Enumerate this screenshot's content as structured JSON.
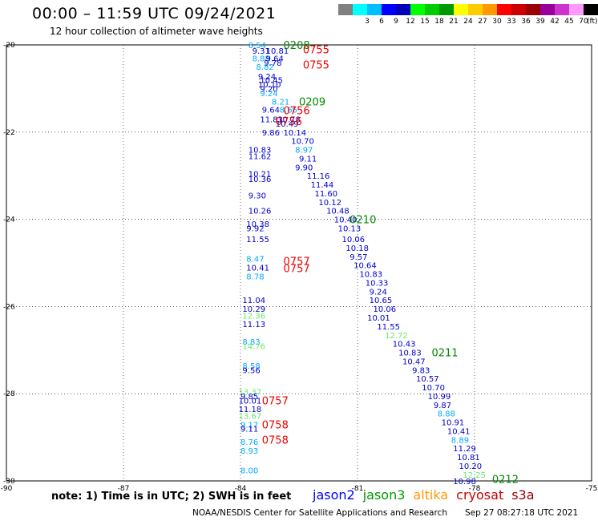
{
  "header": {
    "title": "00:00 – 11:59 UTC 09/24/2021",
    "subtitle": "12 hour collection of altimeter wave heights"
  },
  "colorbar": {
    "unit": "(ft)",
    "swatches": [
      {
        "color": "#808080",
        "label": ""
      },
      {
        "color": "#00ffff",
        "label": "3"
      },
      {
        "color": "#00bfff",
        "label": "6"
      },
      {
        "color": "#0000ff",
        "label": "9"
      },
      {
        "color": "#0000bb",
        "label": "12"
      },
      {
        "color": "#00ff00",
        "label": "15"
      },
      {
        "color": "#00cc00",
        "label": "18"
      },
      {
        "color": "#009900",
        "label": "21"
      },
      {
        "color": "#ffff00",
        "label": "24"
      },
      {
        "color": "#ffcc00",
        "label": "27"
      },
      {
        "color": "#ff9900",
        "label": "30"
      },
      {
        "color": "#ff0000",
        "label": "33"
      },
      {
        "color": "#cc0000",
        "label": "36"
      },
      {
        "color": "#990000",
        "label": "39"
      },
      {
        "color": "#990099",
        "label": "42"
      },
      {
        "color": "#cc33cc",
        "label": "45"
      },
      {
        "color": "#ff99ff",
        "label": "70"
      },
      {
        "color": "#000000",
        "label": ""
      }
    ]
  },
  "map": {
    "lon_range": [
      -90,
      -75
    ],
    "lat_range": [
      -30,
      -20
    ],
    "lon_ticks": [
      "-90",
      "-87",
      "-84",
      "-81",
      "-78",
      "-75"
    ],
    "lat_ticks": [
      "-20",
      "-22",
      "-24",
      "-26",
      "-28",
      "-30"
    ],
    "grid": "dotted",
    "points": [
      {
        "lon": -83.8,
        "lat": -20.0,
        "v": "8.54",
        "c": "#00aaff"
      },
      {
        "lon": -83.7,
        "lat": -20.13,
        "v": "9.31",
        "c": "#0000cc"
      },
      {
        "lon": -83.35,
        "lat": -20.13,
        "v": "10.81",
        "c": "#0000cc"
      },
      {
        "lon": -83.7,
        "lat": -20.3,
        "v": "8.88",
        "c": "#00aaff"
      },
      {
        "lon": -83.35,
        "lat": -20.3,
        "v": "9.64",
        "c": "#0000cc"
      },
      {
        "lon": -83.4,
        "lat": -20.4,
        "v": "9.78",
        "c": "#0000cc"
      },
      {
        "lon": -83.6,
        "lat": -20.5,
        "v": "8.82",
        "c": "#00aaff"
      },
      {
        "lon": -83.55,
        "lat": -20.72,
        "v": "9.24",
        "c": "#0000cc"
      },
      {
        "lon": -83.5,
        "lat": -20.8,
        "v": "10.45",
        "c": "#0000cc"
      },
      {
        "lon": -83.55,
        "lat": -20.9,
        "v": "10.10",
        "c": "#0000cc"
      },
      {
        "lon": -83.5,
        "lat": -21.0,
        "v": "9.20",
        "c": "#0000cc"
      },
      {
        "lon": -83.5,
        "lat": -21.1,
        "v": "9.24",
        "c": "#00aaff"
      },
      {
        "lon": -83.2,
        "lat": -21.3,
        "v": "8.21",
        "c": "#00aaff"
      },
      {
        "lon": -83.45,
        "lat": -21.48,
        "v": "9.64",
        "c": "#0000cc"
      },
      {
        "lon": -83.0,
        "lat": -21.48,
        "v": "8.66",
        "c": "#00aaff"
      },
      {
        "lon": -83.5,
        "lat": -21.7,
        "v": "11.83",
        "c": "#0000cc"
      },
      {
        "lon": -83.05,
        "lat": -21.7,
        "v": "10.78",
        "c": "#0000cc"
      },
      {
        "lon": -83.1,
        "lat": -21.8,
        "v": "10.49",
        "c": "#0000cc"
      },
      {
        "lon": -83.45,
        "lat": -22.0,
        "v": "9.86",
        "c": "#0000cc"
      },
      {
        "lon": -82.9,
        "lat": -22.0,
        "v": "10.14",
        "c": "#0000cc"
      },
      {
        "lon": -82.7,
        "lat": -22.2,
        "v": "10.70",
        "c": "#0000cc"
      },
      {
        "lon": -83.8,
        "lat": -22.4,
        "v": "10.83",
        "c": "#0000cc"
      },
      {
        "lon": -82.6,
        "lat": -22.4,
        "v": "8.97",
        "c": "#00aaff"
      },
      {
        "lon": -83.8,
        "lat": -22.55,
        "v": "11.62",
        "c": "#0000cc"
      },
      {
        "lon": -82.5,
        "lat": -22.6,
        "v": "9.11",
        "c": "#0000cc"
      },
      {
        "lon": -82.6,
        "lat": -22.8,
        "v": "9.90",
        "c": "#0000cc"
      },
      {
        "lon": -83.8,
        "lat": -22.95,
        "v": "10.21",
        "c": "#0000cc"
      },
      {
        "lon": -83.8,
        "lat": -23.07,
        "v": "10.36",
        "c": "#0000cc"
      },
      {
        "lon": -82.3,
        "lat": -23.0,
        "v": "11.16",
        "c": "#0000cc"
      },
      {
        "lon": -82.2,
        "lat": -23.2,
        "v": "11.44",
        "c": "#0000cc"
      },
      {
        "lon": -83.8,
        "lat": -23.45,
        "v": "9.30",
        "c": "#0000cc"
      },
      {
        "lon": -82.1,
        "lat": -23.4,
        "v": "11.60",
        "c": "#0000cc"
      },
      {
        "lon": -82.0,
        "lat": -23.6,
        "v": "10.12",
        "c": "#0000cc"
      },
      {
        "lon": -83.8,
        "lat": -23.8,
        "v": "10.26",
        "c": "#0000cc"
      },
      {
        "lon": -81.8,
        "lat": -23.8,
        "v": "10.48",
        "c": "#0000cc"
      },
      {
        "lon": -81.6,
        "lat": -24.0,
        "v": "10.40",
        "c": "#0000cc"
      },
      {
        "lon": -83.85,
        "lat": -24.1,
        "v": "10.38",
        "c": "#0000cc"
      },
      {
        "lon": -83.85,
        "lat": -24.2,
        "v": "9.92",
        "c": "#0000cc"
      },
      {
        "lon": -81.5,
        "lat": -24.2,
        "v": "10.13",
        "c": "#0000cc"
      },
      {
        "lon": -83.85,
        "lat": -24.45,
        "v": "11.55",
        "c": "#0000cc"
      },
      {
        "lon": -81.4,
        "lat": -24.45,
        "v": "10.06",
        "c": "#0000cc"
      },
      {
        "lon": -81.3,
        "lat": -24.65,
        "v": "10.18",
        "c": "#0000cc"
      },
      {
        "lon": -83.85,
        "lat": -24.9,
        "v": "8.47",
        "c": "#00aaff"
      },
      {
        "lon": -81.2,
        "lat": -24.85,
        "v": "9.57",
        "c": "#0000cc"
      },
      {
        "lon": -83.85,
        "lat": -25.1,
        "v": "10.41",
        "c": "#0000cc"
      },
      {
        "lon": -81.1,
        "lat": -25.05,
        "v": "10.64",
        "c": "#0000cc"
      },
      {
        "lon": -83.85,
        "lat": -25.3,
        "v": "8.78",
        "c": "#00aaff"
      },
      {
        "lon": -80.95,
        "lat": -25.25,
        "v": "10.83",
        "c": "#0000cc"
      },
      {
        "lon": -80.8,
        "lat": -25.45,
        "v": "10.33",
        "c": "#0000cc"
      },
      {
        "lon": -80.7,
        "lat": -25.65,
        "v": "9.24",
        "c": "#0000cc"
      },
      {
        "lon": -83.95,
        "lat": -25.85,
        "v": "11.04",
        "c": "#0000cc"
      },
      {
        "lon": -80.7,
        "lat": -25.85,
        "v": "10.65",
        "c": "#0000cc"
      },
      {
        "lon": -83.95,
        "lat": -26.05,
        "v": "10.29",
        "c": "#0000cc"
      },
      {
        "lon": -80.6,
        "lat": -26.05,
        "v": "10.06",
        "c": "#0000cc"
      },
      {
        "lon": -83.95,
        "lat": -26.2,
        "v": "12.36",
        "c": "#66ee66"
      },
      {
        "lon": -80.75,
        "lat": -26.25,
        "v": "10.01",
        "c": "#0000cc"
      },
      {
        "lon": -83.95,
        "lat": -26.4,
        "v": "11.13",
        "c": "#0000cc"
      },
      {
        "lon": -80.5,
        "lat": -26.45,
        "v": "11.55",
        "c": "#0000cc"
      },
      {
        "lon": -80.3,
        "lat": -26.65,
        "v": "12.72",
        "c": "#66ee66"
      },
      {
        "lon": -83.95,
        "lat": -26.8,
        "v": "8.83",
        "c": "#00aaff"
      },
      {
        "lon": -80.1,
        "lat": -26.85,
        "v": "10.43",
        "c": "#0000cc"
      },
      {
        "lon": -83.95,
        "lat": -26.9,
        "v": "14.76",
        "c": "#66ee66"
      },
      {
        "lon": -79.95,
        "lat": -27.05,
        "v": "10.83",
        "c": "#0000cc"
      },
      {
        "lon": -79.85,
        "lat": -27.25,
        "v": "10.47",
        "c": "#0000cc"
      },
      {
        "lon": -83.95,
        "lat": -27.35,
        "v": "8.58",
        "c": "#00aaff"
      },
      {
        "lon": -83.95,
        "lat": -27.45,
        "v": "9.56",
        "c": "#0000cc"
      },
      {
        "lon": -79.6,
        "lat": -27.45,
        "v": "9.83",
        "c": "#0000cc"
      },
      {
        "lon": -79.5,
        "lat": -27.65,
        "v": "10.57",
        "c": "#0000cc"
      },
      {
        "lon": -79.35,
        "lat": -27.85,
        "v": "10.70",
        "c": "#0000cc"
      },
      {
        "lon": -84.05,
        "lat": -27.95,
        "v": "13.37",
        "c": "#66ee66"
      },
      {
        "lon": -84.0,
        "lat": -28.05,
        "v": "9.85",
        "c": "#0000cc"
      },
      {
        "lon": -79.2,
        "lat": -28.05,
        "v": "10.99",
        "c": "#0000cc"
      },
      {
        "lon": -84.05,
        "lat": -28.15,
        "v": "10.01",
        "c": "#0000cc"
      },
      {
        "lon": -79.05,
        "lat": -28.25,
        "v": "9.87",
        "c": "#0000cc"
      },
      {
        "lon": -84.05,
        "lat": -28.35,
        "v": "11.18",
        "c": "#0000cc"
      },
      {
        "lon": -78.95,
        "lat": -28.45,
        "v": "8.88",
        "c": "#00aaff"
      },
      {
        "lon": -84.05,
        "lat": -28.5,
        "v": "13.67",
        "c": "#66ee66"
      },
      {
        "lon": -78.85,
        "lat": -28.65,
        "v": "10.91",
        "c": "#0000cc"
      },
      {
        "lon": -84.0,
        "lat": -28.7,
        "v": "9.17",
        "c": "#00aaff"
      },
      {
        "lon": -84.0,
        "lat": -28.8,
        "v": "9.11",
        "c": "#0000cc"
      },
      {
        "lon": -78.7,
        "lat": -28.85,
        "v": "10.41",
        "c": "#0000cc"
      },
      {
        "lon": -78.6,
        "lat": -29.05,
        "v": "8.89",
        "c": "#00aaff"
      },
      {
        "lon": -84.0,
        "lat": -29.1,
        "v": "8.76",
        "c": "#00aaff"
      },
      {
        "lon": -78.55,
        "lat": -29.25,
        "v": "11.29",
        "c": "#0000cc"
      },
      {
        "lon": -84.0,
        "lat": -29.3,
        "v": "8.93",
        "c": "#00aaff"
      },
      {
        "lon": -78.45,
        "lat": -29.45,
        "v": "10.81",
        "c": "#0000cc"
      },
      {
        "lon": -78.4,
        "lat": -29.65,
        "v": "10.20",
        "c": "#0000cc"
      },
      {
        "lon": -84.0,
        "lat": -29.75,
        "v": "8.00",
        "c": "#00aaff"
      },
      {
        "lon": -78.3,
        "lat": -29.85,
        "v": "12.25",
        "c": "#66ee66"
      },
      {
        "lon": -78.55,
        "lat": -30.0,
        "v": "10.98",
        "c": "#0000cc"
      }
    ],
    "time_labels": [
      {
        "lon": -82.9,
        "lat": -20.0,
        "t": "0208",
        "c": "#008800"
      },
      {
        "lon": -82.4,
        "lat": -20.1,
        "t": "0755",
        "c": "#ee0000"
      },
      {
        "lon": -82.4,
        "lat": -20.45,
        "t": "0755",
        "c": "#ee0000"
      },
      {
        "lon": -82.5,
        "lat": -21.3,
        "t": "0209",
        "c": "#008800"
      },
      {
        "lon": -82.9,
        "lat": -21.5,
        "t": "0756",
        "c": "#ee0000"
      },
      {
        "lon": -83.1,
        "lat": -21.75,
        "t": "0756",
        "c": "#ee0000"
      },
      {
        "lon": -81.2,
        "lat": -24.0,
        "t": "0210",
        "c": "#008800"
      },
      {
        "lon": -82.9,
        "lat": -24.95,
        "t": "0757",
        "c": "#ee0000"
      },
      {
        "lon": -82.9,
        "lat": -25.12,
        "t": "0757",
        "c": "#ee0000"
      },
      {
        "lon": -79.1,
        "lat": -27.05,
        "t": "0211",
        "c": "#008800"
      },
      {
        "lon": -83.45,
        "lat": -28.15,
        "t": "0757",
        "c": "#ee0000"
      },
      {
        "lon": -83.45,
        "lat": -28.7,
        "t": "0758",
        "c": "#ee0000"
      },
      {
        "lon": -83.45,
        "lat": -29.05,
        "t": "0758",
        "c": "#ee0000"
      },
      {
        "lon": -77.55,
        "lat": -29.95,
        "t": "0212",
        "c": "#008800"
      }
    ]
  },
  "footer": {
    "note": "note: 1) Time is in UTC; 2) SWH is in feet",
    "legend": [
      {
        "name": "jason2",
        "color": "#0000ee"
      },
      {
        "name": "jason3",
        "color": "#009900"
      },
      {
        "name": "altika",
        "color": "#ff9900"
      },
      {
        "name": "cryosat",
        "color": "#cc0000"
      },
      {
        "name": "s3a",
        "color": "#990000"
      }
    ],
    "credit": "NOAA/NESDIS Center for Satellite Applications and Research",
    "timestamp": "Sep 27 08:27:18 UTC 2021"
  }
}
